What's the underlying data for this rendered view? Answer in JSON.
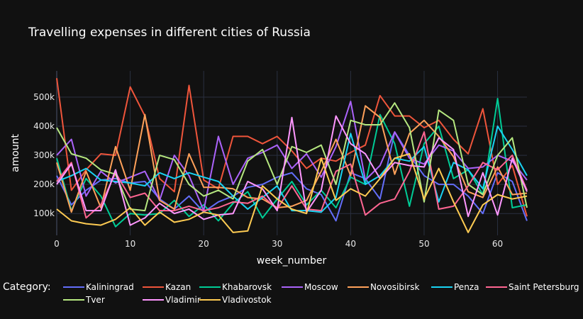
{
  "chart_data": {
    "type": "line",
    "title": "Travelling expenses in different cities of Russia",
    "xlabel": "week_number",
    "ylabel": "amount",
    "xlim": [
      0,
      64
    ],
    "ylim": [
      25000,
      590000
    ],
    "x_ticks": [
      0,
      10,
      20,
      30,
      40,
      50,
      60
    ],
    "y_ticks": [
      100000,
      200000,
      300000,
      400000,
      500000
    ],
    "y_tick_labels": [
      "100k",
      "200k",
      "300k",
      "400k",
      "500k"
    ],
    "grid": true,
    "legend_title": "Category:",
    "legend_position": "bottom",
    "x": [
      0,
      2,
      4,
      6,
      8,
      10,
      12,
      14,
      16,
      18,
      20,
      22,
      24,
      26,
      28,
      30,
      32,
      34,
      36,
      38,
      40,
      42,
      44,
      46,
      48,
      50,
      52,
      54,
      56,
      58,
      60,
      62,
      64
    ],
    "series": [
      {
        "name": "Kaliningrad",
        "color": "#636efa",
        "values": [
          230000,
          130000,
          180000,
          215000,
          220000,
          205000,
          210000,
          150000,
          115000,
          160000,
          105000,
          140000,
          160000,
          190000,
          200000,
          225000,
          240000,
          185000,
          165000,
          75000,
          240000,
          220000,
          150000,
          380000,
          300000,
          230000,
          200000,
          200000,
          160000,
          100000,
          240000,
          210000,
          75000
        ]
      },
      {
        "name": "Kazan",
        "color": "#EF553B",
        "values": [
          565000,
          180000,
          250000,
          305000,
          300000,
          535000,
          435000,
          220000,
          175000,
          540000,
          215000,
          185000,
          365000,
          365000,
          340000,
          365000,
          315000,
          255000,
          290000,
          280000,
          310000,
          335000,
          505000,
          435000,
          435000,
          395000,
          420000,
          355000,
          305000,
          460000,
          200000,
          265000,
          90000
        ]
      },
      {
        "name": "Khabarovsk",
        "color": "#00cc96",
        "values": [
          290000,
          110000,
          220000,
          160000,
          55000,
          100000,
          95000,
          100000,
          145000,
          90000,
          130000,
          75000,
          135000,
          175000,
          85000,
          150000,
          210000,
          130000,
          180000,
          120000,
          225000,
          200000,
          440000,
          340000,
          125000,
          340000,
          400000,
          220000,
          250000,
          165000,
          495000,
          120000,
          130000
        ]
      },
      {
        "name": "Moscow",
        "color": "#ab63fa",
        "values": [
          300000,
          355000,
          160000,
          245000,
          205000,
          225000,
          245000,
          145000,
          300000,
          230000,
          110000,
          365000,
          200000,
          290000,
          310000,
          335000,
          255000,
          305000,
          225000,
          330000,
          485000,
          215000,
          265000,
          380000,
          290000,
          270000,
          335000,
          315000,
          255000,
          260000,
          300000,
          280000,
          215000
        ]
      },
      {
        "name": "Novosibirsk",
        "color": "#FFA15A",
        "values": [
          275000,
          105000,
          245000,
          120000,
          330000,
          180000,
          440000,
          145000,
          115000,
          305000,
          190000,
          190000,
          185000,
          155000,
          150000,
          120000,
          125000,
          145000,
          245000,
          355000,
          230000,
          470000,
          430000,
          235000,
          375000,
          420000,
          365000,
          295000,
          175000,
          155000,
          260000,
          165000,
          170000
        ]
      },
      {
        "name": "Penza",
        "color": "#19d3f3",
        "values": [
          210000,
          230000,
          255000,
          215000,
          210000,
          205000,
          195000,
          240000,
          220000,
          240000,
          225000,
          210000,
          160000,
          115000,
          155000,
          195000,
          110000,
          110000,
          105000,
          155000,
          375000,
          200000,
          230000,
          290000,
          280000,
          330000,
          140000,
          275000,
          250000,
          185000,
          400000,
          320000,
          230000
        ]
      },
      {
        "name": "Saint Petersburg",
        "color": "#FF6692",
        "values": [
          210000,
          275000,
          85000,
          130000,
          240000,
          155000,
          170000,
          110000,
          110000,
          125000,
          110000,
          120000,
          140000,
          135000,
          160000,
          115000,
          195000,
          115000,
          110000,
          245000,
          270000,
          95000,
          135000,
          150000,
          245000,
          380000,
          115000,
          125000,
          195000,
          275000,
          250000,
          300000,
          180000
        ]
      },
      {
        "name": "Tver",
        "color": "#B6E880",
        "values": [
          395000,
          305000,
          290000,
          250000,
          235000,
          115000,
          110000,
          300000,
          285000,
          200000,
          160000,
          180000,
          150000,
          280000,
          320000,
          200000,
          330000,
          310000,
          335000,
          200000,
          420000,
          405000,
          405000,
          480000,
          395000,
          140000,
          455000,
          420000,
          200000,
          165000,
          300000,
          360000,
          120000
        ]
      },
      {
        "name": "Vladimir",
        "color": "#FF97FF",
        "values": [
          200000,
          270000,
          110000,
          110000,
          250000,
          60000,
          85000,
          135000,
          100000,
          115000,
          80000,
          95000,
          100000,
          210000,
          185000,
          110000,
          430000,
          105000,
          180000,
          435000,
          340000,
          305000,
          220000,
          275000,
          265000,
          260000,
          360000,
          320000,
          90000,
          240000,
          95000,
          290000,
          175000
        ]
      },
      {
        "name": "Vladivostok",
        "color": "#FECB52",
        "values": [
          115000,
          75000,
          65000,
          60000,
          80000,
          120000,
          60000,
          105000,
          70000,
          80000,
          105000,
          95000,
          35000,
          40000,
          195000,
          150000,
          115000,
          100000,
          290000,
          145000,
          185000,
          160000,
          220000,
          290000,
          305000,
          150000,
          255000,
          140000,
          35000,
          130000,
          165000,
          150000,
          160000
        ]
      }
    ]
  }
}
